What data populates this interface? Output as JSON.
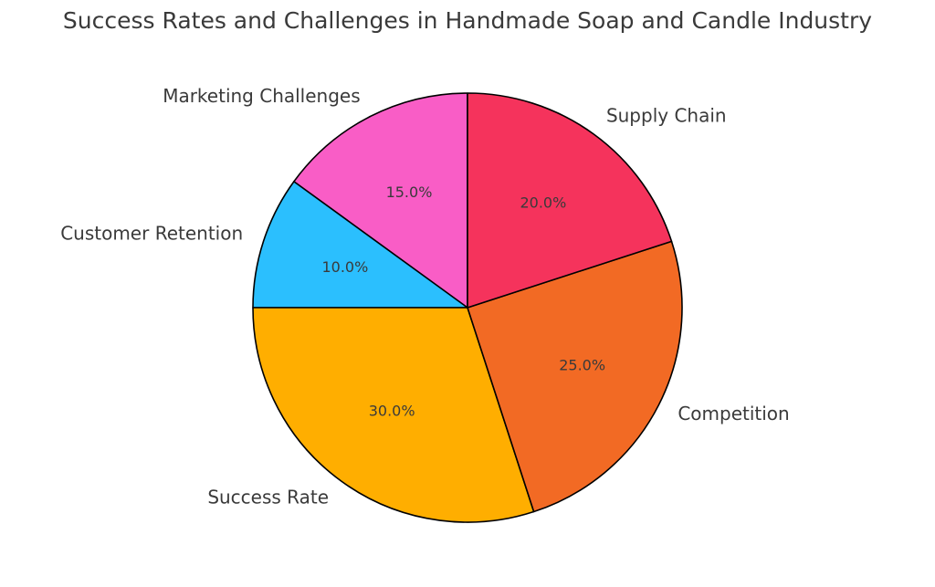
{
  "chart_data": {
    "type": "pie",
    "title": "Success Rates and Challenges in Handmade Soap and Candle Industry",
    "start_angle_deg": 90,
    "direction": "counterclockwise",
    "slices": [
      {
        "label": "Marketing Challenges",
        "value": 15.0,
        "pct_text": "15.0%",
        "color": "#f95dc6"
      },
      {
        "label": "Customer Retention",
        "value": 10.0,
        "pct_text": "10.0%",
        "color": "#2bbffe"
      },
      {
        "label": "Success Rate",
        "value": 30.0,
        "pct_text": "30.0%",
        "color": "#ffae00"
      },
      {
        "label": "Competition",
        "value": 25.0,
        "pct_text": "25.0%",
        "color": "#f26a24"
      },
      {
        "label": "Supply Chain",
        "value": 20.0,
        "pct_text": "20.0%",
        "color": "#f5335c"
      }
    ],
    "edge_color": "#000000"
  }
}
